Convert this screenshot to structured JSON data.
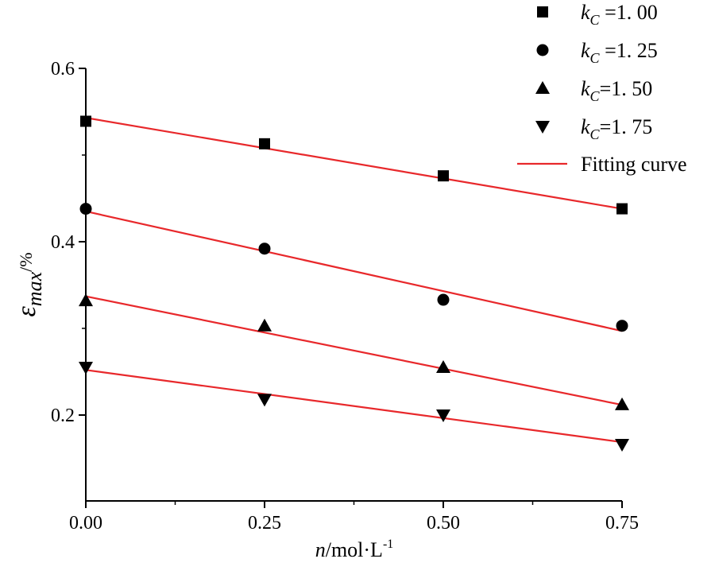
{
  "chart_data": {
    "type": "scatter",
    "title": "",
    "xlabel": {
      "var": "n",
      "unit": "/mol·L",
      "sup": "-1"
    },
    "ylabel": {
      "var": "ε",
      "sub": "max",
      "unit": "/%"
    },
    "xlim": [
      0,
      0.75
    ],
    "ylim": [
      0.1,
      0.6
    ],
    "xticks": [
      0.0,
      0.25,
      0.5,
      0.75
    ],
    "xtick_labels": [
      "0.00",
      "0.25",
      "0.50",
      "0.75"
    ],
    "yticks": [
      0.2,
      0.4,
      0.6
    ],
    "ytick_labels": [
      "0.2",
      "0.4",
      "0.6"
    ],
    "grid": false,
    "legend_position": "top-right",
    "colors": {
      "markers": "#000000",
      "fit": "#e8282b"
    },
    "series": [
      {
        "name": "k_C =1. 00",
        "legend_var": "k",
        "legend_sub": "C",
        "legend_value": " =1. 00",
        "marker": "square",
        "x": [
          0,
          0.25,
          0.5,
          0.75
        ],
        "y": [
          0.539,
          0.513,
          0.476,
          0.438
        ],
        "fit": {
          "intercept": 0.543,
          "slope": -0.14
        }
      },
      {
        "name": "k_C =1. 25",
        "legend_var": "k",
        "legend_sub": "C",
        "legend_value": " =1. 25",
        "marker": "circle",
        "x": [
          0,
          0.25,
          0.5,
          0.75
        ],
        "y": [
          0.438,
          0.392,
          0.333,
          0.303
        ],
        "fit": {
          "intercept": 0.435,
          "slope": -0.184
        }
      },
      {
        "name": "k_C =1. 50",
        "legend_var": "k",
        "legend_sub": "C",
        "legend_value": "=1. 50",
        "marker": "triangle-up",
        "x": [
          0,
          0.25,
          0.5,
          0.75
        ],
        "y": [
          0.332,
          0.303,
          0.255,
          0.212
        ],
        "fit": {
          "intercept": 0.337,
          "slope": -0.167
        }
      },
      {
        "name": "k_C =1. 75",
        "legend_var": "k",
        "legend_sub": "C",
        "legend_value": "=1. 75",
        "marker": "triangle-down",
        "x": [
          0,
          0.25,
          0.5,
          0.75
        ],
        "y": [
          0.255,
          0.218,
          0.2,
          0.166
        ],
        "fit": {
          "intercept": 0.252,
          "slope": -0.111
        }
      }
    ],
    "fit_legend_label": "Fitting curve"
  }
}
